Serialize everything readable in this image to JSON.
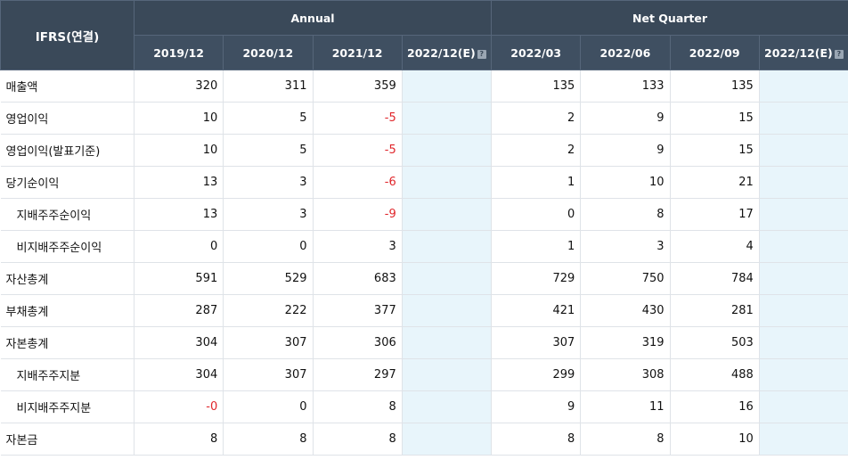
{
  "header": {
    "corner_label": "IFRS(연결)",
    "group_annual": "Annual",
    "group_quarter": "Net Quarter",
    "annual_periods": [
      "2019/12",
      "2020/12",
      "2021/12",
      "2022/12(E)"
    ],
    "quarter_periods": [
      "2022/03",
      "2022/06",
      "2022/09",
      "2022/12(E)"
    ]
  },
  "rows": [
    {
      "label": "매출액",
      "sub": false,
      "values": [
        "320",
        "311",
        "359",
        "",
        "135",
        "133",
        "135",
        ""
      ]
    },
    {
      "label": "영업이익",
      "sub": false,
      "values": [
        "10",
        "5",
        "-5",
        "",
        "2",
        "9",
        "15",
        ""
      ]
    },
    {
      "label": "영업이익(발표기준)",
      "sub": false,
      "values": [
        "10",
        "5",
        "-5",
        "",
        "2",
        "9",
        "15",
        ""
      ]
    },
    {
      "label": "당기순이익",
      "sub": false,
      "values": [
        "13",
        "3",
        "-6",
        "",
        "1",
        "10",
        "21",
        ""
      ]
    },
    {
      "label": "지배주주순이익",
      "sub": true,
      "values": [
        "13",
        "3",
        "-9",
        "",
        "0",
        "8",
        "17",
        ""
      ]
    },
    {
      "label": "비지배주주순이익",
      "sub": true,
      "values": [
        "0",
        "0",
        "3",
        "",
        "1",
        "3",
        "4",
        ""
      ]
    },
    {
      "label": "자산총계",
      "sub": false,
      "values": [
        "591",
        "529",
        "683",
        "",
        "729",
        "750",
        "784",
        ""
      ]
    },
    {
      "label": "부채총계",
      "sub": false,
      "values": [
        "287",
        "222",
        "377",
        "",
        "421",
        "430",
        "281",
        ""
      ]
    },
    {
      "label": "자본총계",
      "sub": false,
      "values": [
        "304",
        "307",
        "306",
        "",
        "307",
        "319",
        "503",
        ""
      ]
    },
    {
      "label": "지배주주지분",
      "sub": true,
      "values": [
        "304",
        "307",
        "297",
        "",
        "299",
        "308",
        "488",
        ""
      ]
    },
    {
      "label": "비지배주주지분",
      "sub": true,
      "values": [
        "-0",
        "0",
        "8",
        "",
        "9",
        "11",
        "16",
        ""
      ]
    },
    {
      "label": "자본금",
      "sub": false,
      "values": [
        "8",
        "8",
        "8",
        "",
        "8",
        "8",
        "10",
        ""
      ]
    }
  ],
  "colors": {
    "header_bg": "#3a4959",
    "estimate_bg": "#e8f5fb",
    "negative": "#e0262b"
  }
}
